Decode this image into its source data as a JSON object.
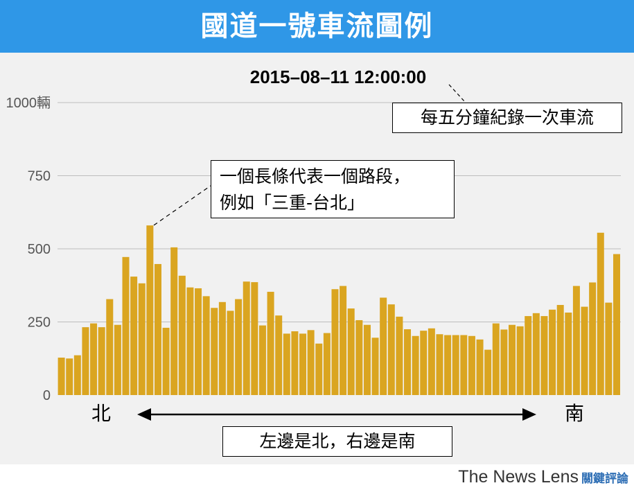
{
  "header": {
    "title": "國道一號車流圖例"
  },
  "footer": {
    "brand": "The News Lens",
    "brand_cjk": "關鍵評論"
  },
  "chart_data": {
    "type": "bar",
    "title": "2015–08–11 12:00:00",
    "ylim": [
      0,
      1000
    ],
    "yticks": [
      0,
      250,
      500,
      750,
      1000
    ],
    "ytick_labels": [
      "0",
      "250",
      "500",
      "750",
      "1000輛"
    ],
    "bar_color": "#daa520",
    "values": [
      128,
      125,
      136,
      232,
      245,
      232,
      328,
      240,
      472,
      405,
      382,
      580,
      448,
      230,
      505,
      408,
      368,
      365,
      338,
      298,
      318,
      288,
      328,
      388,
      386,
      238,
      353,
      272,
      210,
      218,
      210,
      222,
      176,
      212,
      362,
      373,
      296,
      256,
      240,
      196,
      333,
      310,
      268,
      225,
      202,
      220,
      228,
      208,
      205,
      205,
      205,
      202,
      190,
      155,
      245,
      224,
      240,
      235,
      270,
      280,
      270,
      292,
      308,
      282,
      373,
      302,
      385,
      555,
      316,
      482
    ],
    "annotations": {
      "interval": "每五分鐘紀錄一次車流",
      "bar_meaning_line1": "一個長條代表一個路段，",
      "bar_meaning_line2": "例如「三重-台北」",
      "direction": "左邊是北，右邊是南"
    },
    "xlabels": {
      "left": "北",
      "right": "南"
    }
  }
}
